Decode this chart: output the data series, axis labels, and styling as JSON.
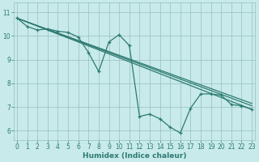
{
  "xlabel": "Humidex (Indice chaleur)",
  "bg_color": "#c8eaea",
  "grid_color": "#96bebe",
  "line_color": "#2d7a72",
  "xlim": [
    -0.3,
    23.3
  ],
  "ylim": [
    5.6,
    11.4
  ],
  "xticks": [
    0,
    1,
    2,
    3,
    4,
    5,
    6,
    7,
    8,
    9,
    10,
    11,
    12,
    13,
    14,
    15,
    16,
    17,
    18,
    19,
    20,
    21,
    22,
    23
  ],
  "yticks": [
    6,
    7,
    8,
    9,
    10,
    11
  ],
  "main_x": [
    0,
    1,
    2,
    3,
    4,
    5,
    6,
    7,
    8,
    9,
    10,
    11,
    12,
    13,
    14,
    15,
    16,
    17,
    18,
    19,
    20,
    21,
    22,
    23
  ],
  "main_y": [
    10.75,
    10.4,
    10.25,
    10.3,
    10.2,
    10.15,
    9.95,
    9.3,
    8.5,
    9.75,
    10.05,
    9.6,
    6.6,
    6.7,
    6.5,
    6.15,
    5.9,
    6.95,
    7.55,
    7.55,
    7.5,
    7.1,
    7.05,
    6.9
  ],
  "line1_x": [
    0,
    23
  ],
  "line1_y": [
    10.75,
    7.15
  ],
  "line2_x": [
    0,
    23
  ],
  "line2_y": [
    10.75,
    7.05
  ],
  "line3_x": [
    0,
    23
  ],
  "line3_y": [
    10.75,
    6.9
  ]
}
